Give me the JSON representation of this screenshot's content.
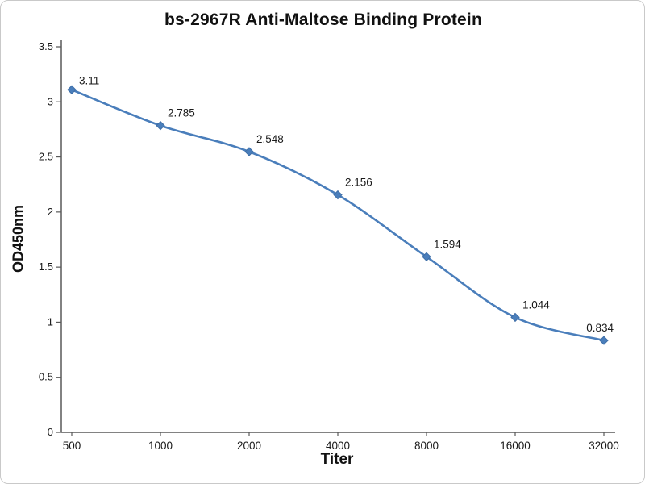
{
  "chart_data": {
    "type": "line",
    "title": "bs-2967R Anti-Maltose Binding Protein",
    "xlabel": "Titer",
    "ylabel": "OD450nm",
    "categories": [
      "500",
      "1000",
      "2000",
      "4000",
      "8000",
      "16000",
      "32000"
    ],
    "values": [
      3.11,
      2.785,
      2.548,
      2.156,
      1.594,
      1.044,
      0.834
    ],
    "point_labels": [
      "3.11",
      "2.785",
      "2.548",
      "2.156",
      "1.594",
      "1.044",
      "0.834"
    ],
    "ylim": [
      0,
      3.5
    ],
    "ytick_step": 0.5,
    "yticks": [
      "0",
      "0.5",
      "1",
      "1.5",
      "2",
      "2.5",
      "3",
      "3.5"
    ],
    "line_color": "#4a7ebb",
    "marker_color": "#3f6ea6",
    "axis_color": "#595959",
    "text_color": "#1a1a1a",
    "marker": "diamond",
    "grid": false,
    "legend": "none"
  }
}
